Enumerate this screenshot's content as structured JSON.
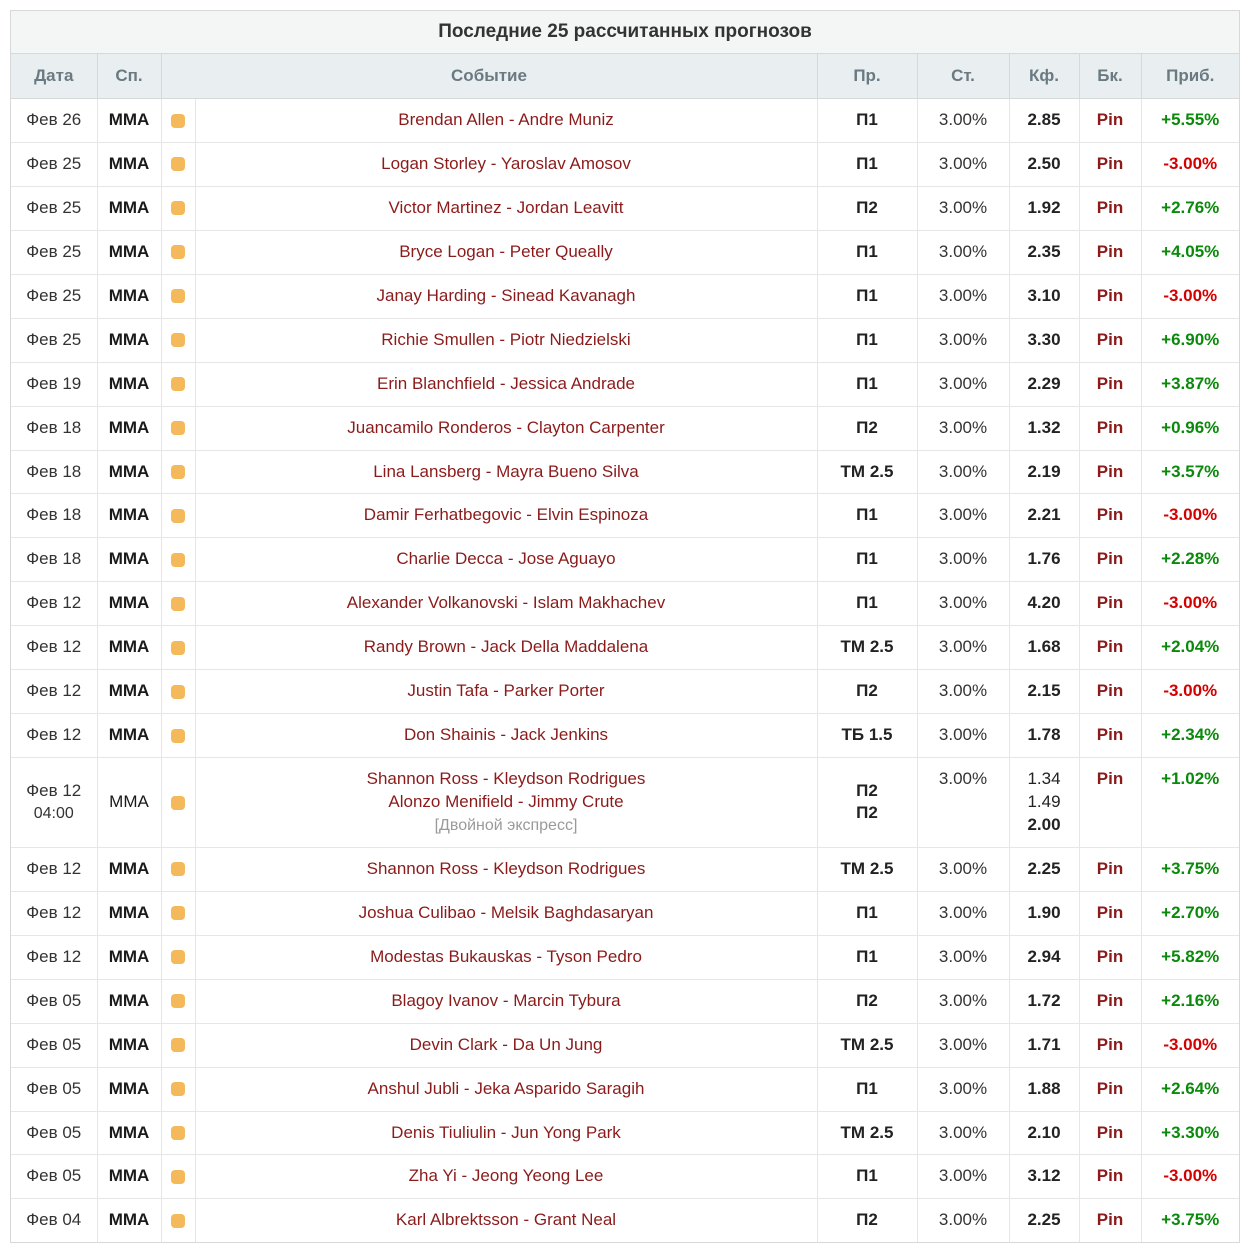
{
  "title": "Последние 25 рассчитанных прогнозов",
  "headers": {
    "date": "Дата",
    "sport": "Сп.",
    "event": "Событие",
    "pred": "Пр.",
    "stake": "Ст.",
    "odds": "Кф.",
    "book": "Бк.",
    "profit": "Приб."
  },
  "colors": {
    "title_bg": "#f4f5f5",
    "header_bg": "#e9eff0",
    "header_fg": "#6a7a82",
    "border": "#d8d8d8",
    "row_border": "#e6e6e6",
    "event_link": "#8b1b1b",
    "book_link": "#8b1b1b",
    "profit_positive": "#0a8a0a",
    "profit_negative": "#d40000",
    "icon_square": "#f4b95a",
    "note_text": "#9a9a9a"
  },
  "rows": [
    {
      "date": "Фев 26",
      "sport": "MMA",
      "sport_bold": true,
      "event": "Brendan Allen - Andre Muniz",
      "pred": "П1",
      "stake": "3.00%",
      "odds": "2.85",
      "book": "Pin",
      "profit": "+5.55%",
      "profit_sign": "pos"
    },
    {
      "date": "Фев 25",
      "sport": "MMA",
      "sport_bold": true,
      "event": "Logan Storley - Yaroslav Amosov",
      "pred": "П1",
      "stake": "3.00%",
      "odds": "2.50",
      "book": "Pin",
      "profit": "-3.00%",
      "profit_sign": "neg"
    },
    {
      "date": "Фев 25",
      "sport": "MMA",
      "sport_bold": true,
      "event": "Victor Martinez - Jordan Leavitt",
      "pred": "П2",
      "stake": "3.00%",
      "odds": "1.92",
      "book": "Pin",
      "profit": "+2.76%",
      "profit_sign": "pos"
    },
    {
      "date": "Фев 25",
      "sport": "MMA",
      "sport_bold": true,
      "event": "Bryce Logan - Peter Queally",
      "pred": "П1",
      "stake": "3.00%",
      "odds": "2.35",
      "book": "Pin",
      "profit": "+4.05%",
      "profit_sign": "pos"
    },
    {
      "date": "Фев 25",
      "sport": "MMA",
      "sport_bold": true,
      "event": "Janay Harding - Sinead Kavanagh",
      "pred": "П1",
      "stake": "3.00%",
      "odds": "3.10",
      "book": "Pin",
      "profit": "-3.00%",
      "profit_sign": "neg"
    },
    {
      "date": "Фев 25",
      "sport": "MMA",
      "sport_bold": true,
      "event": "Richie Smullen - Piotr Niedzielski",
      "pred": "П1",
      "stake": "3.00%",
      "odds": "3.30",
      "book": "Pin",
      "profit": "+6.90%",
      "profit_sign": "pos"
    },
    {
      "date": "Фев 19",
      "sport": "MMA",
      "sport_bold": true,
      "event": "Erin Blanchfield - Jessica Andrade",
      "pred": "П1",
      "stake": "3.00%",
      "odds": "2.29",
      "book": "Pin",
      "profit": "+3.87%",
      "profit_sign": "pos"
    },
    {
      "date": "Фев 18",
      "sport": "MMA",
      "sport_bold": true,
      "event": "Juancamilo Ronderos - Clayton Carpenter",
      "pred": "П2",
      "stake": "3.00%",
      "odds": "1.32",
      "book": "Pin",
      "profit": "+0.96%",
      "profit_sign": "pos"
    },
    {
      "date": "Фев 18",
      "sport": "MMA",
      "sport_bold": true,
      "event": "Lina Lansberg - Mayra Bueno Silva",
      "pred": "ТМ 2.5",
      "stake": "3.00%",
      "odds": "2.19",
      "book": "Pin",
      "profit": "+3.57%",
      "profit_sign": "pos"
    },
    {
      "date": "Фев 18",
      "sport": "MMA",
      "sport_bold": true,
      "event": "Damir Ferhatbegovic - Elvin Espinoza",
      "pred": "П1",
      "stake": "3.00%",
      "odds": "2.21",
      "book": "Pin",
      "profit": "-3.00%",
      "profit_sign": "neg"
    },
    {
      "date": "Фев 18",
      "sport": "MMA",
      "sport_bold": true,
      "event": "Charlie Decca - Jose Aguayo",
      "pred": "П1",
      "stake": "3.00%",
      "odds": "1.76",
      "book": "Pin",
      "profit": "+2.28%",
      "profit_sign": "pos"
    },
    {
      "date": "Фев 12",
      "sport": "MMA",
      "sport_bold": true,
      "event": "Alexander Volkanovski - Islam Makhachev",
      "pred": "П1",
      "stake": "3.00%",
      "odds": "4.20",
      "book": "Pin",
      "profit": "-3.00%",
      "profit_sign": "neg"
    },
    {
      "date": "Фев 12",
      "sport": "MMA",
      "sport_bold": true,
      "event": "Randy Brown - Jack Della Maddalena",
      "pred": "ТМ 2.5",
      "stake": "3.00%",
      "odds": "1.68",
      "book": "Pin",
      "profit": "+2.04%",
      "profit_sign": "pos"
    },
    {
      "date": "Фев 12",
      "sport": "MMA",
      "sport_bold": true,
      "event": "Justin Tafa - Parker Porter",
      "pred": "П2",
      "stake": "3.00%",
      "odds": "2.15",
      "book": "Pin",
      "profit": "-3.00%",
      "profit_sign": "neg"
    },
    {
      "date": "Фев 12",
      "sport": "MMA",
      "sport_bold": true,
      "event": "Don Shainis - Jack Jenkins",
      "pred": "ТБ 1.5",
      "stake": "3.00%",
      "odds": "1.78",
      "book": "Pin",
      "profit": "+2.34%",
      "profit_sign": "pos"
    },
    {
      "date": "Фев 12",
      "date_sub": "04:00",
      "sport": "MMA",
      "sport_bold": false,
      "event_lines": [
        "Shannon Ross - Kleydson Rodrigues",
        "Alonzo Menifield - Jimmy Crute"
      ],
      "note": "[Двойной экспресс]",
      "pred_lines": [
        "П2",
        "П2"
      ],
      "stake": "3.00%",
      "odds_lines": [
        "1.34",
        "1.49"
      ],
      "odds_bold": "2.00",
      "book": "Pin",
      "profit": "+1.02%",
      "profit_sign": "pos",
      "multi": true
    },
    {
      "date": "Фев 12",
      "sport": "MMA",
      "sport_bold": true,
      "event": "Shannon Ross - Kleydson Rodrigues",
      "pred": "ТМ 2.5",
      "stake": "3.00%",
      "odds": "2.25",
      "book": "Pin",
      "profit": "+3.75%",
      "profit_sign": "pos"
    },
    {
      "date": "Фев 12",
      "sport": "MMA",
      "sport_bold": true,
      "event": "Joshua Culibao - Melsik Baghdasaryan",
      "pred": "П1",
      "stake": "3.00%",
      "odds": "1.90",
      "book": "Pin",
      "profit": "+2.70%",
      "profit_sign": "pos"
    },
    {
      "date": "Фев 12",
      "sport": "MMA",
      "sport_bold": true,
      "event": "Modestas Bukauskas - Tyson Pedro",
      "pred": "П1",
      "stake": "3.00%",
      "odds": "2.94",
      "book": "Pin",
      "profit": "+5.82%",
      "profit_sign": "pos"
    },
    {
      "date": "Фев 05",
      "sport": "MMA",
      "sport_bold": true,
      "event": "Blagoy Ivanov - Marcin Tybura",
      "pred": "П2",
      "stake": "3.00%",
      "odds": "1.72",
      "book": "Pin",
      "profit": "+2.16%",
      "profit_sign": "pos"
    },
    {
      "date": "Фев 05",
      "sport": "MMA",
      "sport_bold": true,
      "event": "Devin Clark - Da Un Jung",
      "pred": "ТМ 2.5",
      "stake": "3.00%",
      "odds": "1.71",
      "book": "Pin",
      "profit": "-3.00%",
      "profit_sign": "neg"
    },
    {
      "date": "Фев 05",
      "sport": "MMA",
      "sport_bold": true,
      "event": "Anshul Jubli - Jeka Asparido Saragih",
      "pred": "П1",
      "stake": "3.00%",
      "odds": "1.88",
      "book": "Pin",
      "profit": "+2.64%",
      "profit_sign": "pos"
    },
    {
      "date": "Фев 05",
      "sport": "MMA",
      "sport_bold": true,
      "event": "Denis Tiuliulin - Jun Yong Park",
      "pred": "ТМ 2.5",
      "stake": "3.00%",
      "odds": "2.10",
      "book": "Pin",
      "profit": "+3.30%",
      "profit_sign": "pos"
    },
    {
      "date": "Фев 05",
      "sport": "MMA",
      "sport_bold": true,
      "event": "Zha Yi - Jeong Yeong Lee",
      "pred": "П1",
      "stake": "3.00%",
      "odds": "3.12",
      "book": "Pin",
      "profit": "-3.00%",
      "profit_sign": "neg"
    },
    {
      "date": "Фев 04",
      "sport": "MMA",
      "sport_bold": true,
      "event": "Karl Albrektsson - Grant Neal",
      "pred": "П2",
      "stake": "3.00%",
      "odds": "2.25",
      "book": "Pin",
      "profit": "+3.75%",
      "profit_sign": "pos"
    }
  ]
}
